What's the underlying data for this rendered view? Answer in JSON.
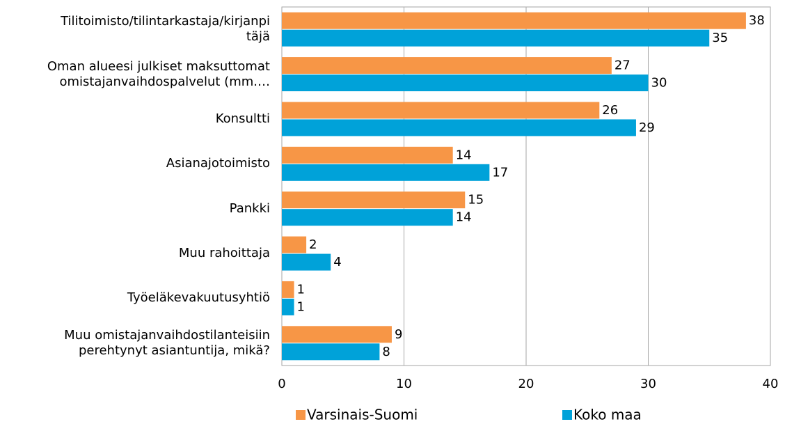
{
  "chart_data": {
    "type": "bar",
    "orientation": "horizontal",
    "categories": [
      "Tilitoimisto/tilintarkastaja/kirjanpi\ntäjä",
      "Oman alueesi julkiset maksuttomat\nomistajanvaihdospalvelut (mm.…",
      "Konsultti",
      "Asianajotoimisto",
      "Pankki",
      "Muu rahoittaja",
      "Työeläkevakuutusyhtiö",
      "Muu omistajanvaihdostilanteisiin\nperehtynyt asiantuntija, mikä?"
    ],
    "series": [
      {
        "name": "Varsinais-Suomi",
        "color": "#f79646",
        "values": [
          38,
          27,
          26,
          14,
          15,
          2,
          1,
          9
        ]
      },
      {
        "name": "Koko maa",
        "color": "#00a2d9",
        "values": [
          35,
          30,
          29,
          17,
          14,
          4,
          1,
          8
        ]
      }
    ],
    "xlim": [
      0,
      40
    ],
    "xticks": [
      0,
      10,
      20,
      30,
      40
    ],
    "grid": true,
    "legend": "bottom"
  }
}
